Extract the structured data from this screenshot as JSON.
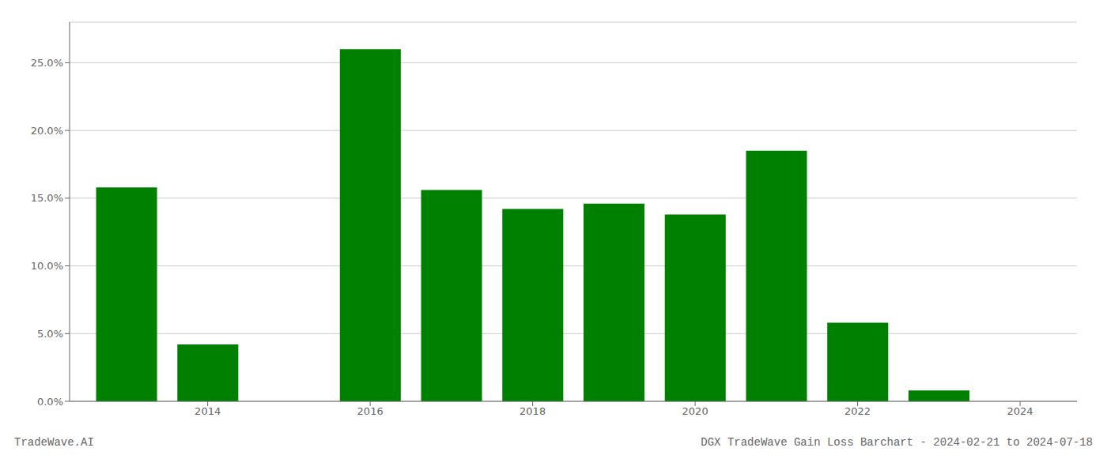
{
  "chart_data": {
    "type": "bar",
    "title": "DGX TradeWave Gain Loss Barchart - 2024-02-21 to 2024-07-18",
    "annotations": [
      "TradeWave.AI"
    ],
    "x": [
      2013,
      2014,
      2015,
      2016,
      2017,
      2018,
      2019,
      2020,
      2021,
      2022,
      2023
    ],
    "values": [
      0.158,
      0.042,
      0.0,
      0.26,
      0.156,
      0.142,
      0.146,
      0.138,
      0.185,
      0.058,
      0.008
    ],
    "color": "#008000",
    "xlim": [
      2012.3,
      2024.7
    ],
    "ylim": [
      0.0,
      0.28
    ],
    "xticks": [
      2014,
      2016,
      2018,
      2020,
      2022,
      2024
    ],
    "yticks": [
      {
        "value": 0.0,
        "label": "0.0%"
      },
      {
        "value": 0.05,
        "label": "5.0%"
      },
      {
        "value": 0.1,
        "label": "10.0%"
      },
      {
        "value": 0.15,
        "label": "15.0%"
      },
      {
        "value": 0.2,
        "label": "20.0%"
      },
      {
        "value": 0.25,
        "label": "25.0%"
      }
    ],
    "grid": true
  }
}
